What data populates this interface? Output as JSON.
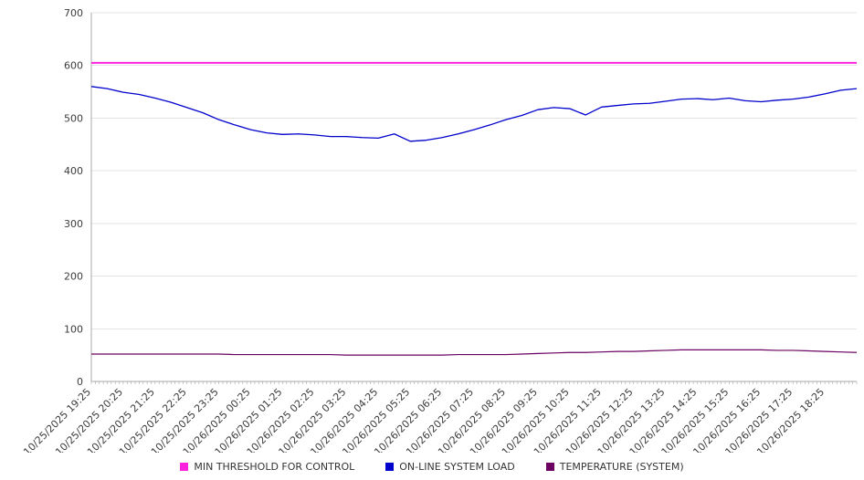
{
  "chart_data": {
    "type": "line",
    "title": "",
    "xlabel": "",
    "ylabel": "",
    "ylim": [
      0,
      700
    ],
    "y_ticks": [
      0,
      100,
      200,
      300,
      400,
      500,
      600,
      700
    ],
    "grid": true,
    "legend_position": "bottom",
    "label_every": 2,
    "x_labels": [
      "10/25/2025 19:25",
      "10/25/2025 20:25",
      "10/25/2025 21:25",
      "10/25/2025 22:25",
      "10/25/2025 23:25",
      "10/26/2025 00:25",
      "10/26/2025 01:25",
      "10/26/2025 02:25",
      "10/26/2025 03:25",
      "10/26/2025 04:25",
      "10/26/2025 05:25",
      "10/26/2025 06:25",
      "10/26/2025 07:25",
      "10/26/2025 08:25",
      "10/26/2025 09:25",
      "10/26/2025 10:25",
      "10/26/2025 11:25",
      "10/26/2025 12:25",
      "10/26/2025 13:25",
      "10/26/2025 14:25",
      "10/26/2025 15:25",
      "10/26/2025 16:25",
      "10/26/2025 17:25",
      "10/26/2025 18:25"
    ],
    "series": [
      {
        "name": "MIN THRESHOLD FOR CONTROL",
        "color": "#ff22dd",
        "width": 2,
        "values": [
          605,
          605,
          605,
          605,
          605,
          605,
          605,
          605,
          605,
          605,
          605,
          605,
          605,
          605,
          605,
          605,
          605,
          605,
          605,
          605,
          605,
          605,
          605,
          605,
          605,
          605,
          605,
          605,
          605,
          605,
          605,
          605,
          605,
          605,
          605,
          605,
          605,
          605,
          605,
          605,
          605,
          605,
          605,
          605,
          605,
          605,
          605,
          605,
          605
        ]
      },
      {
        "name": "ON-LINE SYSTEM LOAD",
        "color": "#0000cc",
        "width": 1.3,
        "values": [
          560,
          556,
          549,
          545,
          538,
          530,
          520,
          510,
          497,
          487,
          478,
          472,
          469,
          470,
          468,
          465,
          465,
          463,
          462,
          470,
          456,
          458,
          463,
          470,
          478,
          487,
          497,
          505,
          516,
          520,
          518,
          506,
          521,
          524,
          527,
          528,
          532,
          536,
          537,
          535,
          538,
          533,
          531,
          534,
          536,
          540,
          546,
          553,
          556
        ]
      },
      {
        "name": "TEMPERATURE (SYSTEM)",
        "color": "#6b0062",
        "width": 1.2,
        "values": [
          52,
          52,
          52,
          52,
          52,
          52,
          52,
          52,
          52,
          51,
          51,
          51,
          51,
          51,
          51,
          51,
          50,
          50,
          50,
          50,
          50,
          50,
          50,
          51,
          51,
          51,
          51,
          52,
          53,
          54,
          55,
          55,
          56,
          57,
          57,
          58,
          59,
          60,
          60,
          60,
          60,
          60,
          60,
          59,
          59,
          58,
          57,
          56,
          55
        ]
      }
    ]
  }
}
